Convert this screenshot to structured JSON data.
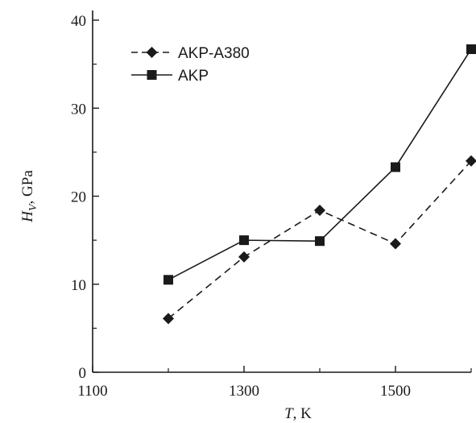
{
  "chart_data": {
    "type": "line",
    "title": "",
    "xlabel": {
      "symbol": "T",
      "unit": ", K"
    },
    "ylabel": {
      "symbol": "H",
      "subscript": "V",
      "unit": ", GPa"
    },
    "xlim": [
      1100,
      1600
    ],
    "ylim": [
      0,
      40
    ],
    "xticks": [
      1100,
      1300,
      1500
    ],
    "yticks": [
      0,
      10,
      20,
      30,
      40
    ],
    "grid": false,
    "legend": "top-left",
    "series": [
      {
        "name": "AKP-A380",
        "line_style": "dashed",
        "marker": "diamond",
        "color": "#1a1a1a",
        "x": [
          1200,
          1300,
          1400,
          1500,
          1600
        ],
        "y": [
          6.1,
          13.1,
          18.4,
          14.6,
          24.0
        ]
      },
      {
        "name": "AKP",
        "line_style": "solid",
        "marker": "square",
        "color": "#1a1a1a",
        "x": [
          1200,
          1300,
          1400,
          1500,
          1600
        ],
        "y": [
          10.5,
          15.0,
          14.9,
          23.3,
          36.7
        ]
      }
    ]
  }
}
